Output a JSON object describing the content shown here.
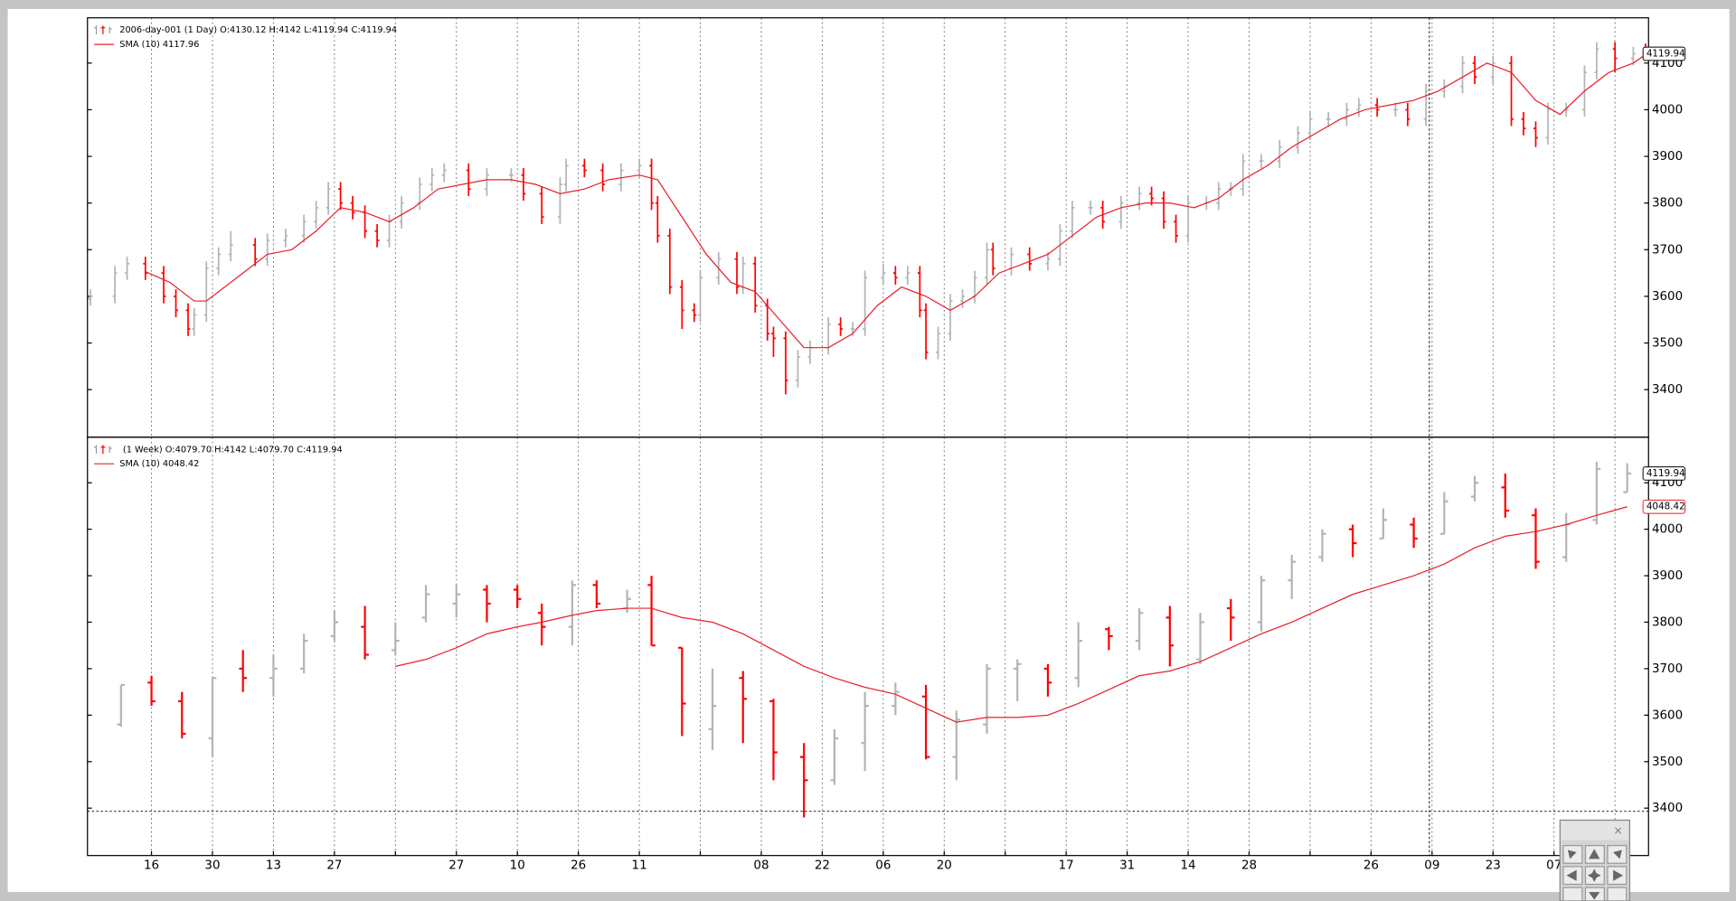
{
  "chart_data": [
    {
      "type": "ohlc",
      "legend_title": "2006-day-001 (1 Day) O:4130.12 H:4142 L:4119.94 C:4119.94",
      "up_color": "#b4b4b4",
      "down_color": "#ff0000",
      "x": [
        0,
        4,
        6,
        9,
        12,
        14,
        16,
        17,
        19,
        21,
        23,
        27,
        29,
        32,
        35,
        37,
        39,
        41,
        43,
        45,
        47,
        49,
        51,
        54,
        56,
        58,
        62,
        65,
        69,
        71,
        74,
        77,
        78,
        81,
        84,
        87,
        90,
        92,
        93,
        95,
        97,
        99,
        100,
        103,
        106,
        107,
        109,
        111,
        112,
        114,
        116,
        118,
        121,
        123,
        125,
        127,
        130,
        132,
        134,
        136,
        137,
        139,
        141,
        143,
        145,
        147,
        148,
        151,
        154,
        157,
        159,
        161,
        164,
        166,
        169,
        172,
        174,
        176,
        178,
        180,
        183,
        185,
        187,
        189,
        192,
        195,
        198,
        200,
        203,
        206,
        208,
        211,
        214,
        216,
        219,
        222,
        225,
        227,
        230,
        233,
        235,
        237,
        239,
        242,
        245,
        247,
        250,
        253,
        255
      ],
      "open": [
        3595,
        3600,
        3650,
        3670,
        3650,
        3600,
        3570,
        3530,
        3560,
        3660,
        3690,
        3710,
        3680,
        3720,
        3730,
        3760,
        3790,
        3830,
        3800,
        3780,
        3740,
        3720,
        3760,
        3800,
        3840,
        3860,
        3870,
        3830,
        3860,
        3860,
        3820,
        3770,
        3840,
        3880,
        3870,
        3840,
        3870,
        3880,
        3800,
        3730,
        3620,
        3570,
        3560,
        3640,
        3680,
        3620,
        3670,
        3580,
        3520,
        3510,
        3420,
        3470,
        3490,
        3540,
        3530,
        3530,
        3640,
        3650,
        3640,
        3650,
        3570,
        3480,
        3520,
        3590,
        3600,
        3640,
        3700,
        3660,
        3690,
        3670,
        3680,
        3740,
        3790,
        3790,
        3760,
        3800,
        3820,
        3810,
        3760,
        3730,
        3800,
        3800,
        3830,
        3830,
        3890,
        3890,
        3920,
        3950,
        3980,
        3980,
        4000,
        4010,
        4000,
        4000,
        3980,
        4040,
        4050,
        4100,
        4070,
        4100,
        3980,
        3960,
        3940,
        4000,
        4000,
        4080,
        4130,
        4110,
        4130.12
      ],
      "high": [
        3615,
        3665,
        3685,
        3685,
        3665,
        3615,
        3585,
        3575,
        3675,
        3705,
        3740,
        3725,
        3735,
        3745,
        3775,
        3805,
        3845,
        3845,
        3815,
        3795,
        3755,
        3775,
        3815,
        3855,
        3875,
        3885,
        3885,
        3875,
        3875,
        3875,
        3835,
        3855,
        3895,
        3895,
        3885,
        3885,
        3895,
        3895,
        3815,
        3745,
        3635,
        3585,
        3655,
        3695,
        3695,
        3685,
        3685,
        3595,
        3535,
        3525,
        3485,
        3505,
        3555,
        3555,
        3545,
        3655,
        3670,
        3665,
        3665,
        3665,
        3585,
        3535,
        3605,
        3615,
        3655,
        3715,
        3715,
        3705,
        3705,
        3695,
        3755,
        3805,
        3805,
        3805,
        3815,
        3835,
        3835,
        3825,
        3775,
        3815,
        3815,
        3845,
        3845,
        3905,
        3905,
        3935,
        3965,
        3995,
        3995,
        4015,
        4025,
        4025,
        4015,
        4015,
        4055,
        4065,
        4115,
        4115,
        4115,
        4115,
        3995,
        3975,
        4015,
        4015,
        4095,
        4145,
        4145,
        4135,
        4142
      ],
      "low": [
        3580,
        3585,
        3635,
        3635,
        3585,
        3555,
        3515,
        3515,
        3545,
        3645,
        3675,
        3665,
        3665,
        3705,
        3715,
        3745,
        3775,
        3785,
        3765,
        3725,
        3705,
        3705,
        3745,
        3785,
        3825,
        3845,
        3815,
        3815,
        3845,
        3805,
        3755,
        3755,
        3825,
        3855,
        3825,
        3825,
        3855,
        3785,
        3715,
        3605,
        3530,
        3545,
        3545,
        3625,
        3605,
        3605,
        3565,
        3505,
        3470,
        3390,
        3405,
        3455,
        3475,
        3515,
        3515,
        3515,
        3625,
        3625,
        3625,
        3555,
        3465,
        3465,
        3505,
        3575,
        3585,
        3625,
        3645,
        3645,
        3655,
        3655,
        3665,
        3725,
        3775,
        3745,
        3745,
        3785,
        3795,
        3745,
        3715,
        3715,
        3785,
        3785,
        3815,
        3815,
        3875,
        3875,
        3905,
        3935,
        3965,
        3965,
        3985,
        3985,
        3985,
        3965,
        3965,
        4025,
        4035,
        4055,
        4055,
        3965,
        3945,
        3920,
        3925,
        3985,
        3985,
        4065,
        4080,
        4095,
        4119.94
      ],
      "close": [
        3600,
        3650,
        3670,
        3650,
        3600,
        3570,
        3530,
        3560,
        3660,
        3690,
        3710,
        3680,
        3720,
        3730,
        3760,
        3790,
        3830,
        3800,
        3780,
        3740,
        3720,
        3760,
        3800,
        3840,
        3860,
        3870,
        3830,
        3860,
        3860,
        3820,
        3770,
        3840,
        3880,
        3870,
        3840,
        3870,
        3880,
        3800,
        3730,
        3620,
        3570,
        3560,
        3640,
        3680,
        3620,
        3670,
        3580,
        3520,
        3510,
        3420,
        3470,
        3490,
        3540,
        3530,
        3530,
        3640,
        3650,
        3640,
        3650,
        3570,
        3480,
        3520,
        3590,
        3600,
        3640,
        3700,
        3660,
        3690,
        3670,
        3680,
        3740,
        3790,
        3790,
        3760,
        3800,
        3820,
        3810,
        3760,
        3730,
        3800,
        3800,
        3830,
        3830,
        3890,
        3890,
        3920,
        3950,
        3980,
        3980,
        4000,
        4010,
        4000,
        4000,
        3980,
        4040,
        4050,
        4100,
        4070,
        4100,
        3980,
        3960,
        3940,
        4000,
        4000,
        4080,
        4130,
        4110,
        4120,
        4119.94
      ],
      "sma": {
        "name": "SMA (10) 4117.96",
        "color": "#e8202a",
        "x": [
          9,
          13,
          17,
          19,
          21,
          25,
          29,
          33,
          37,
          41,
          45,
          49,
          53,
          57,
          61,
          65,
          69,
          73,
          77,
          81,
          85,
          90,
          93,
          97,
          101,
          105,
          109,
          113,
          117,
          121,
          125,
          129,
          133,
          137,
          141,
          145,
          149,
          153,
          157,
          161,
          165,
          169,
          173,
          177,
          181,
          185,
          189,
          193,
          197,
          201,
          205,
          209,
          213,
          217,
          221,
          225,
          229,
          233,
          237,
          241,
          245,
          249,
          253,
          255
        ],
        "values": [
          3653,
          3630,
          3590,
          3590,
          3610,
          3650,
          3690,
          3700,
          3740,
          3790,
          3780,
          3760,
          3790,
          3830,
          3840,
          3850,
          3850,
          3840,
          3820,
          3830,
          3850,
          3860,
          3850,
          3770,
          3690,
          3630,
          3610,
          3550,
          3490,
          3490,
          3520,
          3580,
          3620,
          3600,
          3570,
          3600,
          3650,
          3670,
          3690,
          3730,
          3770,
          3790,
          3800,
          3800,
          3790,
          3810,
          3850,
          3880,
          3920,
          3950,
          3980,
          4000,
          4010,
          4020,
          4040,
          4070,
          4100,
          4080,
          4020,
          3990,
          4040,
          4080,
          4100,
          4117.96
        ]
      },
      "xlim": [
        -0.5,
        255.5
      ],
      "ylim": [
        3298,
        4197
      ],
      "yticks": [
        3400,
        3500,
        3600,
        3700,
        3800,
        3900,
        4000,
        4100
      ],
      "grid": "x"
    },
    {
      "type": "ohlc",
      "legend_title": "(1 Week) O:4079.70 H:4142 L:4079.70 C:4119.94",
      "up_color": "#b4b4b4",
      "down_color": "#ff0000",
      "x": [
        5,
        10,
        15,
        20,
        25,
        30,
        35,
        40,
        45,
        50,
        55,
        60,
        65,
        70,
        74,
        79,
        83,
        88,
        92,
        97,
        102,
        107,
        112,
        117,
        122,
        127,
        132,
        137,
        142,
        147,
        152,
        157,
        162,
        167,
        172,
        177,
        182,
        187,
        192,
        197,
        202,
        207,
        212,
        217,
        222,
        227,
        232,
        237,
        242,
        247,
        252
      ],
      "open": [
        3580,
        3670,
        3630,
        3550,
        3700,
        3680,
        3700,
        3770,
        3790,
        3740,
        3810,
        3840,
        3870,
        3870,
        3820,
        3790,
        3880,
        3830,
        3880,
        3745,
        3570,
        3680,
        3630,
        3510,
        3460,
        3540,
        3620,
        3640,
        3510,
        3580,
        3700,
        3700,
        3680,
        3785,
        3760,
        3810,
        3720,
        3830,
        3800,
        3890,
        3940,
        4000,
        3980,
        4010,
        3990,
        4070,
        4090,
        4030,
        3940,
        4020,
        4079.7
      ],
      "high": [
        3665,
        3685,
        3650,
        3680,
        3740,
        3730,
        3775,
        3825,
        3835,
        3800,
        3880,
        3880,
        3880,
        3880,
        3840,
        3890,
        3890,
        3870,
        3900,
        3745,
        3700,
        3695,
        3635,
        3540,
        3570,
        3650,
        3670,
        3665,
        3610,
        3710,
        3720,
        3710,
        3800,
        3790,
        3830,
        3835,
        3820,
        3850,
        3900,
        3945,
        4000,
        4010,
        4045,
        4025,
        4080,
        4115,
        4120,
        4045,
        4035,
        4145,
        4142
      ],
      "low": [
        3575,
        3620,
        3550,
        3510,
        3650,
        3640,
        3690,
        3760,
        3720,
        3730,
        3800,
        3810,
        3800,
        3830,
        3750,
        3750,
        3830,
        3820,
        3750,
        3555,
        3525,
        3540,
        3460,
        3380,
        3450,
        3480,
        3600,
        3505,
        3460,
        3560,
        3630,
        3640,
        3660,
        3740,
        3740,
        3705,
        3710,
        3760,
        3780,
        3850,
        3930,
        3940,
        3980,
        3960,
        3990,
        4060,
        4025,
        3915,
        3930,
        4010,
        4079.7
      ],
      "close": [
        3665,
        3630,
        3560,
        3680,
        3680,
        3700,
        3760,
        3800,
        3730,
        3760,
        3860,
        3860,
        3840,
        3850,
        3790,
        3880,
        3840,
        3850,
        3750,
        3625,
        3620,
        3635,
        3520,
        3460,
        3550,
        3620,
        3650,
        3510,
        3590,
        3700,
        3710,
        3670,
        3760,
        3770,
        3820,
        3750,
        3800,
        3810,
        3890,
        3930,
        3990,
        3970,
        4020,
        3980,
        4060,
        4100,
        4040,
        3930,
        4010,
        4130,
        4119.94
      ],
      "sma": {
        "name": "SMA (10) 4048.42",
        "color": "#e8202a",
        "x": [
          50,
          55,
          60,
          65,
          70,
          74,
          79,
          83,
          88,
          92,
          97,
          102,
          107,
          112,
          117,
          122,
          127,
          132,
          137,
          142,
          147,
          152,
          157,
          162,
          167,
          172,
          177,
          182,
          187,
          192,
          197,
          202,
          207,
          212,
          217,
          222,
          227,
          232,
          237,
          242,
          247,
          252
        ],
        "values": [
          3705,
          3720,
          3745,
          3775,
          3790,
          3800,
          3815,
          3825,
          3830,
          3830,
          3810,
          3800,
          3775,
          3740,
          3705,
          3680,
          3660,
          3645,
          3615,
          3585,
          3595,
          3595,
          3600,
          3625,
          3655,
          3685,
          3695,
          3715,
          3745,
          3775,
          3800,
          3830,
          3860,
          3880,
          3900,
          3925,
          3960,
          3985,
          3995,
          4010,
          4030,
          4048.42
        ]
      },
      "xlim": [
        -0.5,
        255.5
      ],
      "ylim": [
        3298,
        4198
      ],
      "yticks": [
        3400,
        3500,
        3600,
        3700,
        3800,
        3900,
        4000,
        4100
      ],
      "grid": "x",
      "xticks": [
        {
          "value": 10,
          "label": "16"
        },
        {
          "value": 20,
          "label": "30"
        },
        {
          "value": 30,
          "label": "13"
        },
        {
          "value": 40,
          "label": "27"
        },
        {
          "value": 50,
          "label": null
        },
        {
          "value": 60,
          "label": "27"
        },
        {
          "value": 70,
          "label": "10"
        },
        {
          "value": 80,
          "label": "26"
        },
        {
          "value": 90,
          "label": "11"
        },
        {
          "value": 100,
          "label": null
        },
        {
          "value": 110,
          "label": "08"
        },
        {
          "value": 120,
          "label": "22"
        },
        {
          "value": 130,
          "label": "06"
        },
        {
          "value": 140,
          "label": "20"
        },
        {
          "value": 150,
          "label": null
        },
        {
          "value": 160,
          "label": "17"
        },
        {
          "value": 170,
          "label": "31"
        },
        {
          "value": 180,
          "label": "14"
        },
        {
          "value": 190,
          "label": "28"
        },
        {
          "value": 200,
          "label": null
        },
        {
          "value": 210,
          "label": "26"
        },
        {
          "value": 220,
          "label": "09"
        },
        {
          "value": 230,
          "label": "23"
        },
        {
          "value": 240,
          "label": "07"
        },
        {
          "value": 250,
          "label": null
        }
      ]
    }
  ]
}
